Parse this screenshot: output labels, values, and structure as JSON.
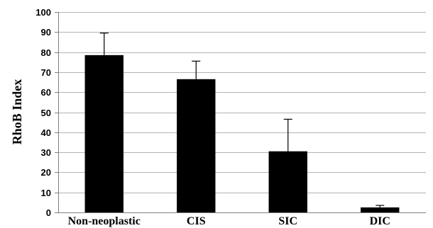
{
  "chart_data": {
    "type": "bar",
    "title": "",
    "xlabel": "",
    "ylabel": "RhoB Index",
    "categories": [
      "Non-neoplastic",
      "CIS",
      "SIC",
      "DIC"
    ],
    "values": [
      78.5,
      66.5,
      30.5,
      2.5
    ],
    "error_bars_upper": [
      11.0,
      9.0,
      16.0,
      1.0
    ],
    "ylim": [
      0,
      100
    ],
    "yticks": [
      0,
      10,
      20,
      30,
      40,
      50,
      60,
      70,
      80,
      90,
      100
    ],
    "grid": true,
    "legend": "none",
    "colors": {
      "bar": "#000000",
      "grid": "#b3b3b3",
      "axis": "#7f7f7f",
      "background": "#ffffff"
    }
  }
}
